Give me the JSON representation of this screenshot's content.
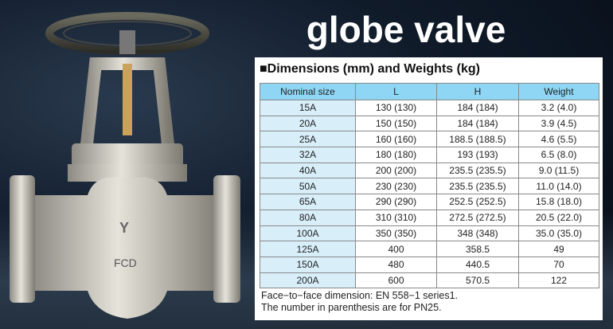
{
  "title": "globe valve",
  "panel_title": "■Dimensions (mm) and Weights (kg)",
  "table": {
    "headers": [
      "Nominal size",
      "L",
      "H",
      "Weight"
    ],
    "rows": [
      [
        "15A",
        "130 (130)",
        "184 (184)",
        "3.2 (4.0)"
      ],
      [
        "20A",
        "150 (150)",
        "184 (184)",
        "3.9 (4.5)"
      ],
      [
        "25A",
        "160 (160)",
        "188.5 (188.5)",
        "4.6 (5.5)"
      ],
      [
        "32A",
        "180 (180)",
        "193 (193)",
        "6.5 (8.0)"
      ],
      [
        "40A",
        "200 (200)",
        "235.5 (235.5)",
        "9.0 (11.5)"
      ],
      [
        "50A",
        "230 (230)",
        "235.5 (235.5)",
        "11.0 (14.0)"
      ],
      [
        "65A",
        "290 (290)",
        "252.5 (252.5)",
        "15.8 (18.0)"
      ],
      [
        "80A",
        "310 (310)",
        "272.5 (272.5)",
        "20.5 (22.0)"
      ],
      [
        "100A",
        "350 (350)",
        "348 (348)",
        "35.0 (35.0)"
      ],
      [
        "125A",
        "400",
        "358.5",
        "49"
      ],
      [
        "150A",
        "480",
        "440.5",
        "70"
      ],
      [
        "200A",
        "600",
        "570.5",
        "122"
      ]
    ]
  },
  "notes": [
    "Face−to−face dimension: EN 558−1 series1.",
    "The number in parenthesis are for PN25."
  ],
  "valve_markings": [
    "FCD",
    "Y"
  ],
  "colors": {
    "header": "#8ed6f4",
    "size_column": "#d8effa"
  }
}
